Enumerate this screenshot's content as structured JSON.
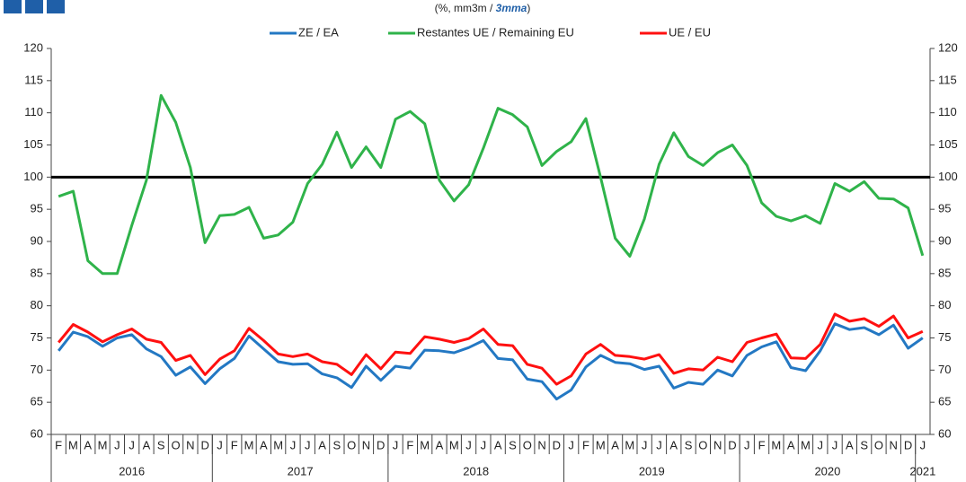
{
  "chart_data": {
    "type": "line",
    "subtitle": [
      "(%, mm3m / ",
      "3mma",
      ")"
    ],
    "categories": [
      "F",
      "M",
      "A",
      "M",
      "J",
      "J",
      "A",
      "S",
      "O",
      "N",
      "D",
      "J",
      "F",
      "M",
      "A",
      "M",
      "J",
      "J",
      "A",
      "S",
      "O",
      "N",
      "D",
      "J",
      "F",
      "M",
      "A",
      "M",
      "J",
      "J",
      "A",
      "S",
      "O",
      "N",
      "D",
      "J",
      "F",
      "M",
      "A",
      "M",
      "J",
      "J",
      "A",
      "S",
      "O",
      "N",
      "D",
      "J",
      "F",
      "M",
      "A",
      "M",
      "J",
      "J",
      "A",
      "S",
      "O",
      "N",
      "D",
      "J"
    ],
    "years": [
      "2016",
      "2017",
      "2018",
      "2019",
      "2020",
      "2021"
    ],
    "series": [
      {
        "name": "ZE / EA",
        "color": "#2378c3",
        "values": [
          73,
          75.9,
          75.2,
          73.7,
          75,
          75.5,
          73.3,
          72.1,
          69.2,
          70.5,
          67.9,
          70.2,
          71.8,
          75.3,
          73.3,
          71.3,
          70.9,
          71,
          69.4,
          68.8,
          67.3,
          70.6,
          68.4,
          70.6,
          70.3,
          73.1,
          73,
          72.7,
          73.5,
          74.6,
          71.8,
          71.6,
          68.6,
          68.2,
          65.5,
          66.9,
          70.5,
          72.3,
          71.2,
          71,
          70.1,
          70.6,
          67.2,
          68.1,
          67.8,
          70,
          69.1,
          72.3,
          73.6,
          74.4,
          70.4,
          69.9,
          73,
          77.2,
          76.3,
          76.6,
          75.5,
          77,
          73.4,
          75
        ]
      },
      {
        "name": "Restantes UE / Remaining EU",
        "color": "#2fb34a",
        "values": [
          97,
          97.8,
          87,
          85,
          85,
          92.5,
          99.5,
          112.7,
          108.5,
          101.5,
          89.8,
          94,
          94.2,
          95.3,
          90.5,
          91,
          93,
          99,
          102,
          107,
          101.5,
          104.7,
          101.5,
          109,
          110.2,
          108.3,
          99.5,
          96.3,
          98.8,
          104.5,
          110.7,
          109.7,
          107.8,
          101.8,
          104,
          105.5,
          109.1,
          100,
          90.5,
          87.7,
          93.5,
          102,
          106.9,
          103.2,
          101.8,
          103.8,
          105,
          101.8,
          96,
          93.9,
          93.2,
          94,
          92.8,
          99,
          97.8,
          99.3,
          96.7,
          96.6,
          95.2,
          87.8
        ]
      },
      {
        "name": "UE / EU",
        "color": "#ff1010",
        "values": [
          74.3,
          77.1,
          75.9,
          74.4,
          75.5,
          76.4,
          74.8,
          74.3,
          71.5,
          72.3,
          69.3,
          71.7,
          73,
          76.5,
          74.6,
          72.5,
          72.1,
          72.5,
          71.3,
          70.9,
          69.3,
          72.4,
          70.2,
          72.8,
          72.6,
          75.2,
          74.8,
          74.3,
          74.9,
          76.4,
          74,
          73.8,
          70.9,
          70.3,
          67.8,
          69.1,
          72.5,
          74,
          72.3,
          72.1,
          71.7,
          72.4,
          69.5,
          70.2,
          70,
          72,
          71.3,
          74.3,
          75,
          75.6,
          71.9,
          71.8,
          74,
          78.7,
          77.6,
          78,
          76.8,
          78.4,
          75,
          76
        ]
      }
    ],
    "reference_line": 100,
    "reference_color": "#000000",
    "ylim": [
      60,
      120
    ],
    "yticks": [
      60,
      65,
      70,
      75,
      80,
      85,
      90,
      95,
      100,
      105,
      110,
      115,
      120
    ]
  }
}
